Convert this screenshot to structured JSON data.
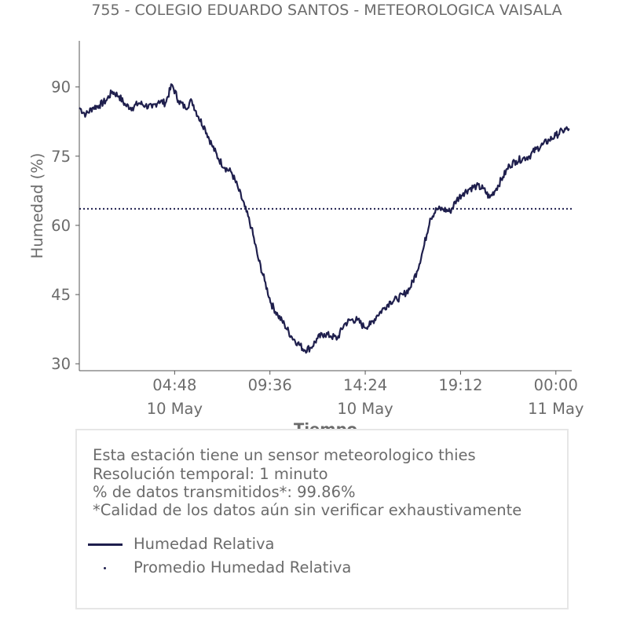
{
  "title": "755 - COLEGIO EDUARDO SANTOS - METEOROLOGICA VAISALA",
  "info": {
    "line1": "Esta estación tiene un sensor meteorologico thies",
    "line2": "Resolución temporal: 1 minuto",
    "line3": "% de datos transmitidos*: 99.86%",
    "line4": "*Calidad de los datos aún sin verificar exhaustivamente"
  },
  "legend": {
    "series": "Humedad Relativa",
    "average": "Promedio Humedad Relativa"
  },
  "colors": {
    "series": "#1f1f4d",
    "text": "#6b6b6b",
    "axis": "#555555"
  },
  "chart_data": {
    "type": "line",
    "title": "755 - COLEGIO EDUARDO SANTOS - METEOROLOGICA VAISALA",
    "xlabel": "Tiempo",
    "ylabel": "Humedad (%)",
    "xlim": [
      "2024-05-10 00:00",
      "2024-05-11 00:48"
    ],
    "ylim": [
      28.5,
      100
    ],
    "yticks": [
      30,
      45,
      60,
      75,
      90
    ],
    "xticks": [
      {
        "t": "2024-05-10 04:48",
        "time": "04:48",
        "date": "10 May"
      },
      {
        "t": "2024-05-10 09:36",
        "time": "09:36",
        "date": ""
      },
      {
        "t": "2024-05-10 14:24",
        "time": "14:24",
        "date": "10 May"
      },
      {
        "t": "2024-05-10 19:12",
        "time": "19:12",
        "date": ""
      },
      {
        "t": "2024-05-11 00:00",
        "time": "00:00",
        "date": "11 May"
      }
    ],
    "grid": false,
    "average": 63.6,
    "series": [
      {
        "name": "Humedad Relativa",
        "x": [
          "2024-05-10 00:00",
          "2024-05-10 00:20",
          "2024-05-10 00:40",
          "2024-05-10 01:00",
          "2024-05-10 01:20",
          "2024-05-10 01:40",
          "2024-05-10 02:00",
          "2024-05-10 02:20",
          "2024-05-10 02:40",
          "2024-05-10 03:00",
          "2024-05-10 03:20",
          "2024-05-10 03:40",
          "2024-05-10 04:00",
          "2024-05-10 04:20",
          "2024-05-10 04:40",
          "2024-05-10 05:00",
          "2024-05-10 05:20",
          "2024-05-10 05:40",
          "2024-05-10 06:00",
          "2024-05-10 06:20",
          "2024-05-10 06:40",
          "2024-05-10 07:00",
          "2024-05-10 07:20",
          "2024-05-10 07:40",
          "2024-05-10 08:00",
          "2024-05-10 08:20",
          "2024-05-10 08:40",
          "2024-05-10 09:00",
          "2024-05-10 09:20",
          "2024-05-10 09:40",
          "2024-05-10 10:00",
          "2024-05-10 10:20",
          "2024-05-10 10:40",
          "2024-05-10 11:00",
          "2024-05-10 11:20",
          "2024-05-10 11:40",
          "2024-05-10 12:00",
          "2024-05-10 12:20",
          "2024-05-10 12:40",
          "2024-05-10 13:00",
          "2024-05-10 13:20",
          "2024-05-10 13:40",
          "2024-05-10 14:00",
          "2024-05-10 14:20",
          "2024-05-10 14:40",
          "2024-05-10 15:00",
          "2024-05-10 15:20",
          "2024-05-10 15:40",
          "2024-05-10 16:00",
          "2024-05-10 16:20",
          "2024-05-10 16:40",
          "2024-05-10 17:00",
          "2024-05-10 17:20",
          "2024-05-10 17:40",
          "2024-05-10 18:00",
          "2024-05-10 18:20",
          "2024-05-10 18:40",
          "2024-05-10 19:00",
          "2024-05-10 19:20",
          "2024-05-10 19:40",
          "2024-05-10 20:00",
          "2024-05-10 20:20",
          "2024-05-10 20:40",
          "2024-05-10 21:00",
          "2024-05-10 21:20",
          "2024-05-10 21:40",
          "2024-05-10 22:00",
          "2024-05-10 22:20",
          "2024-05-10 22:40",
          "2024-05-10 23:00",
          "2024-05-10 23:20",
          "2024-05-10 23:40",
          "2024-05-11 00:00",
          "2024-05-11 00:20",
          "2024-05-11 00:40"
        ],
        "values": [
          85.5,
          84.0,
          85.5,
          86.0,
          87.0,
          89.0,
          88.0,
          86.0,
          85.5,
          86.5,
          86.0,
          85.5,
          87.0,
          86.5,
          90.5,
          87.0,
          85.5,
          87.0,
          83.5,
          81.0,
          77.5,
          74.5,
          72.5,
          71.5,
          68.0,
          64.0,
          59.5,
          53.0,
          48.0,
          43.0,
          40.5,
          38.5,
          36.0,
          34.5,
          33.0,
          33.5,
          35.5,
          36.5,
          36.0,
          35.5,
          38.5,
          39.5,
          39.5,
          38.0,
          38.5,
          40.5,
          42.0,
          43.5,
          44.0,
          45.0,
          46.5,
          50.0,
          55.0,
          61.5,
          63.5,
          63.5,
          63.0,
          65.5,
          67.0,
          68.0,
          68.5,
          68.0,
          66.0,
          68.0,
          70.5,
          73.0,
          74.0,
          74.5,
          75.0,
          76.5,
          77.5,
          78.5,
          79.5,
          80.5,
          81.0
        ]
      }
    ]
  }
}
